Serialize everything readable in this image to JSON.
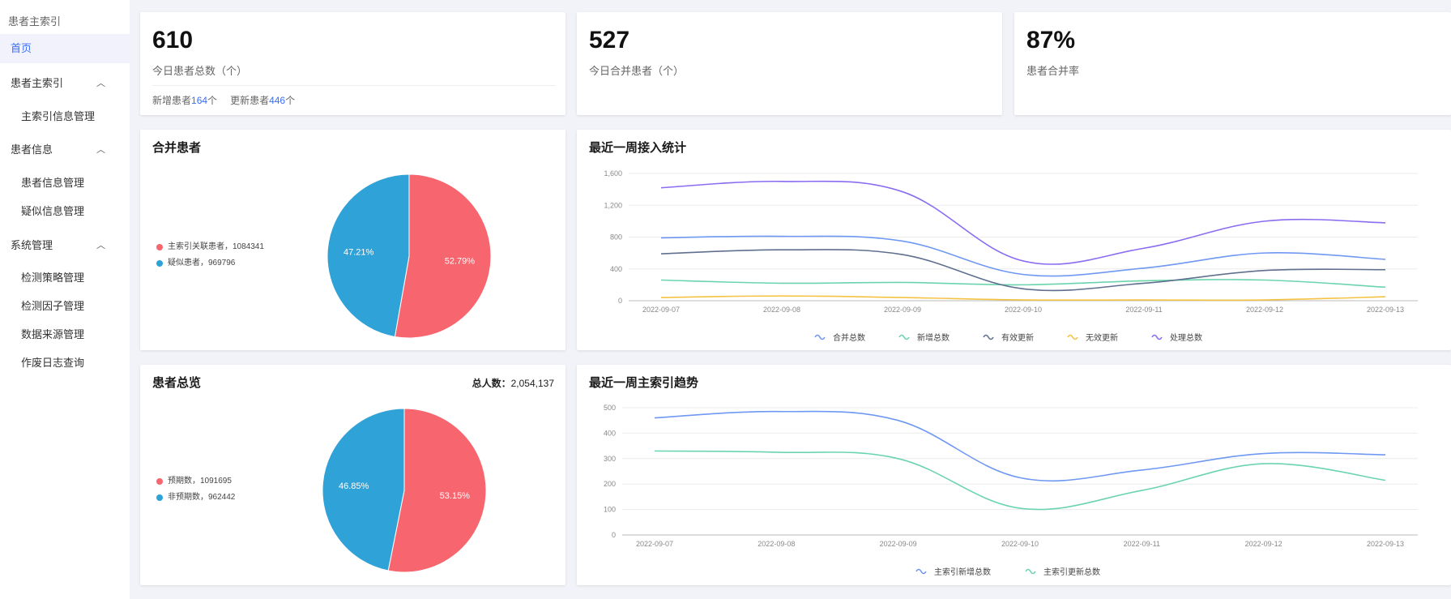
{
  "sidebar": {
    "title": "患者主索引",
    "home": "首页",
    "groups": [
      {
        "label": "患者主索引",
        "items": [
          "主索引信息管理"
        ]
      },
      {
        "label": "患者信息",
        "items": [
          "患者信息管理",
          "疑似信息管理"
        ]
      },
      {
        "label": "系统管理",
        "items": [
          "检测策略管理",
          "检测因子管理",
          "数据来源管理",
          "作废日志查询"
        ]
      }
    ]
  },
  "stats": {
    "today_total": {
      "value": "610",
      "label": "今日患者总数（个）",
      "sub_new_prefix": "新增患者",
      "sub_new_value": "164",
      "sub_new_suffix": "个",
      "sub_update_prefix": "更新患者",
      "sub_update_value": "446",
      "sub_update_suffix": "个"
    },
    "today_merged": {
      "value": "527",
      "label": "今日合并患者（个）"
    },
    "merge_rate": {
      "value": "87%",
      "label": "患者合并率"
    }
  },
  "merge_pie": {
    "title": "合并患者",
    "legend": [
      {
        "text": "主索引关联患者，1084341",
        "color": "#f7656e"
      },
      {
        "text": "疑似患者，969796",
        "color": "#2fa2d8"
      }
    ]
  },
  "overview_pie": {
    "title": "患者总览",
    "total_label": "总人数：",
    "total_value": "2,054,137",
    "legend": [
      {
        "text": "预期数，1091695",
        "color": "#f7656e"
      },
      {
        "text": "非预期数，962442",
        "color": "#2fa2d8"
      }
    ]
  },
  "week_access": {
    "title": "最近一周接入统计"
  },
  "week_index": {
    "title": "最近一周主索引趋势"
  },
  "chart_data": [
    {
      "type": "pie",
      "title": "合并患者",
      "labels": [
        "主索引关联患者",
        "疑似患者"
      ],
      "values": [
        1084341,
        969796
      ],
      "percent_labels": [
        "52.79%",
        "47.21%"
      ],
      "colors": [
        "#f7656e",
        "#2fa2d8"
      ]
    },
    {
      "type": "pie",
      "title": "患者总览",
      "labels": [
        "预期数",
        "非预期数"
      ],
      "values": [
        1091695,
        962442
      ],
      "percent_labels": [
        "53.15%",
        "46.85%"
      ],
      "colors": [
        "#f7656e",
        "#2fa2d8"
      ]
    },
    {
      "type": "line",
      "title": "最近一周接入统计",
      "x": [
        "2022-09-07",
        "2022-09-08",
        "2022-09-09",
        "2022-09-10",
        "2022-09-11",
        "2022-09-12",
        "2022-09-13"
      ],
      "ylim": [
        0,
        1600
      ],
      "yticks": [
        0,
        400,
        800,
        1200,
        1600
      ],
      "ytick_labels": [
        "0",
        "400",
        "800",
        "1,200",
        "1,600"
      ],
      "series": [
        {
          "name": "合并总数",
          "color": "#6f98f2",
          "values": [
            790,
            810,
            750,
            330,
            410,
            600,
            520
          ]
        },
        {
          "name": "新增总数",
          "color": "#6bd4ad",
          "values": [
            260,
            220,
            230,
            200,
            250,
            260,
            170
          ]
        },
        {
          "name": "有效更新",
          "color": "#5f6f8e",
          "values": [
            590,
            640,
            580,
            150,
            220,
            380,
            390
          ]
        },
        {
          "name": "无效更新",
          "color": "#f5c243",
          "values": [
            40,
            60,
            40,
            10,
            10,
            10,
            50
          ]
        },
        {
          "name": "处理总数",
          "color": "#8a6cf0",
          "values": [
            1420,
            1500,
            1370,
            500,
            660,
            1000,
            980
          ]
        }
      ],
      "grid": true,
      "legend_position": "bottom"
    },
    {
      "type": "line",
      "title": "最近一周主索引趋势",
      "x": [
        "2022-09-07",
        "2022-09-08",
        "2022-09-09",
        "2022-09-10",
        "2022-09-11",
        "2022-09-12",
        "2022-09-13"
      ],
      "ylim": [
        0,
        500
      ],
      "yticks": [
        0,
        100,
        200,
        300,
        400,
        500
      ],
      "ytick_labels": [
        "0",
        "100",
        "200",
        "300",
        "400",
        "500"
      ],
      "series": [
        {
          "name": "主索引新增总数",
          "color": "#6f98f2",
          "values": [
            460,
            485,
            450,
            225,
            255,
            320,
            315
          ]
        },
        {
          "name": "主索引更新总数",
          "color": "#6bd4ad",
          "values": [
            330,
            325,
            300,
            105,
            175,
            280,
            215
          ]
        }
      ],
      "grid": true,
      "legend_position": "bottom"
    }
  ]
}
